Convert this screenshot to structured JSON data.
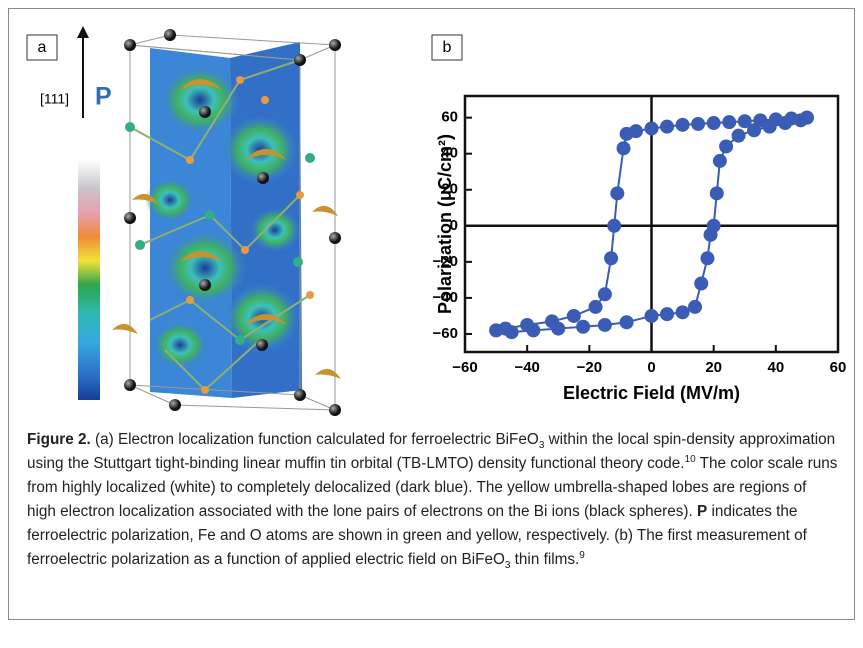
{
  "panel_a": {
    "label": "a",
    "direction": "[111]",
    "symbol": "P"
  },
  "panel_b": {
    "label": "b"
  },
  "chart_data": {
    "type": "line",
    "x_label": "Electric Field (MV/m)",
    "y_label": "Polarization (μC/cm²)",
    "xlim": [
      -60,
      60
    ],
    "ylim": [
      -70,
      72
    ],
    "xticks": [
      {
        "value": -60,
        "label": "−60"
      },
      {
        "value": -40,
        "label": "−40"
      },
      {
        "value": -20,
        "label": "−20"
      },
      0,
      20,
      40,
      60
    ],
    "yticks": [
      {
        "value": -60,
        "label": "−60"
      },
      {
        "value": -40,
        "label": "−40"
      },
      {
        "value": -20,
        "label": "−20"
      },
      0,
      20,
      40,
      60
    ],
    "zero_lines": true,
    "series": [
      {
        "color": "#3b5cb5",
        "x": [
          50,
          45,
          40,
          35,
          30,
          25,
          20,
          15,
          10,
          5,
          0,
          -5,
          -8,
          -9,
          -11,
          -12,
          -13,
          -15,
          -18,
          -25,
          -32,
          -40,
          -47,
          -50,
          -45,
          -38,
          -30,
          -22,
          -15,
          -8,
          0,
          5,
          10,
          14,
          16,
          18,
          19,
          20,
          21,
          22,
          24,
          28,
          33,
          38,
          43,
          48,
          50
        ],
        "values": [
          60,
          59.5,
          59,
          58.5,
          58,
          57.5,
          57,
          56.5,
          56,
          55,
          54,
          52.5,
          51,
          43,
          18,
          0,
          -18,
          -38,
          -45,
          -50,
          -53,
          -55,
          -57,
          -58,
          -59,
          -58,
          -57,
          -56,
          -55,
          -53.5,
          -50,
          -49,
          -48,
          -45,
          -32,
          -18,
          -5,
          0,
          18,
          36,
          44,
          50,
          53,
          55,
          57,
          58.5,
          60
        ]
      }
    ]
  },
  "caption": {
    "segments": [
      "Figure 2.",
      " (a) Electron localization function calculated for ferroelectric BiFeO",
      "3",
      " within the local spin-density approximation using the Stuttgart tight-binding linear muffin tin orbital (TB-LMTO) density functional theory code.",
      "10",
      " The color scale runs from highly localized (white) to completely delocalized (dark blue). The yellow umbrella-shaped lobes are regions of high electron localization associated with the lone pairs of electrons on the Bi ions (black spheres). ",
      "P",
      " indicates the ferroelectric polarization, Fe and O atoms are shown in green and yellow, respectively. (b) The first measurement of ferroelectric polarization as a function of applied electric field on BiFeO",
      "3",
      " thin films.",
      "9"
    ]
  }
}
